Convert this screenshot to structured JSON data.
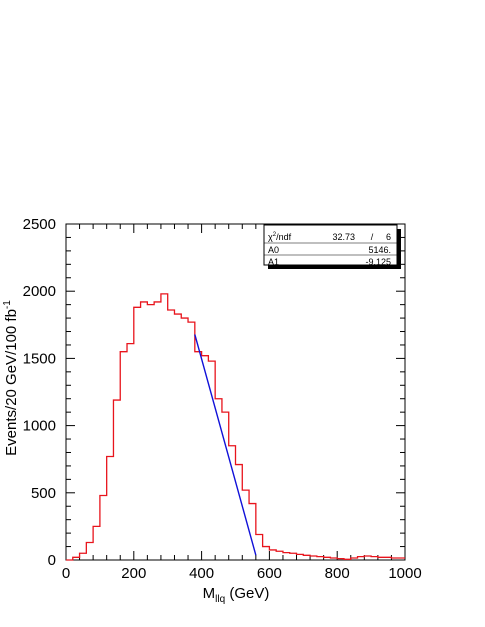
{
  "chart_data": {
    "type": "line",
    "title": "",
    "xlabel": {
      "main": "M",
      "sub": "llq",
      "rest": " (GeV)"
    },
    "ylabel": {
      "main": "Events/20 GeV/100 fb",
      "sup": "-1"
    },
    "xlim": [
      0,
      1000
    ],
    "ylim": [
      0,
      2500
    ],
    "x_ticks": [
      0,
      200,
      400,
      600,
      800,
      1000
    ],
    "y_ticks": [
      0,
      500,
      1000,
      1500,
      2000,
      2500
    ],
    "grid": false,
    "histogram": {
      "name": "",
      "color": "#e8141c",
      "bin_width": 20,
      "bin_edges_start": 0,
      "counts": [
        0,
        20,
        50,
        130,
        250,
        480,
        770,
        1190,
        1550,
        1610,
        1880,
        1920,
        1900,
        1920,
        1980,
        1860,
        1830,
        1800,
        1770,
        1550,
        1520,
        1480,
        1200,
        1100,
        850,
        710,
        520,
        420,
        190,
        100,
        75,
        65,
        55,
        50,
        42,
        35,
        30,
        25,
        20,
        15,
        10,
        5,
        15,
        25,
        30,
        25,
        20,
        20,
        15,
        15
      ]
    },
    "fit": {
      "name": "",
      "color": "#1010d8",
      "type": "linear",
      "x_range": [
        380,
        560
      ],
      "params": {
        "A0": 5146,
        "A1": -9.125
      }
    },
    "stats_box": {
      "chi2_label": "χ",
      "chi2_sup": "2",
      "chi2_rest": "/ndf",
      "chi2_value": "32.73",
      "slash": "/",
      "ndf": "6",
      "rows": [
        {
          "label": "A0",
          "value": "5146."
        },
        {
          "label": "A1",
          "value": "-9.125"
        }
      ]
    }
  }
}
